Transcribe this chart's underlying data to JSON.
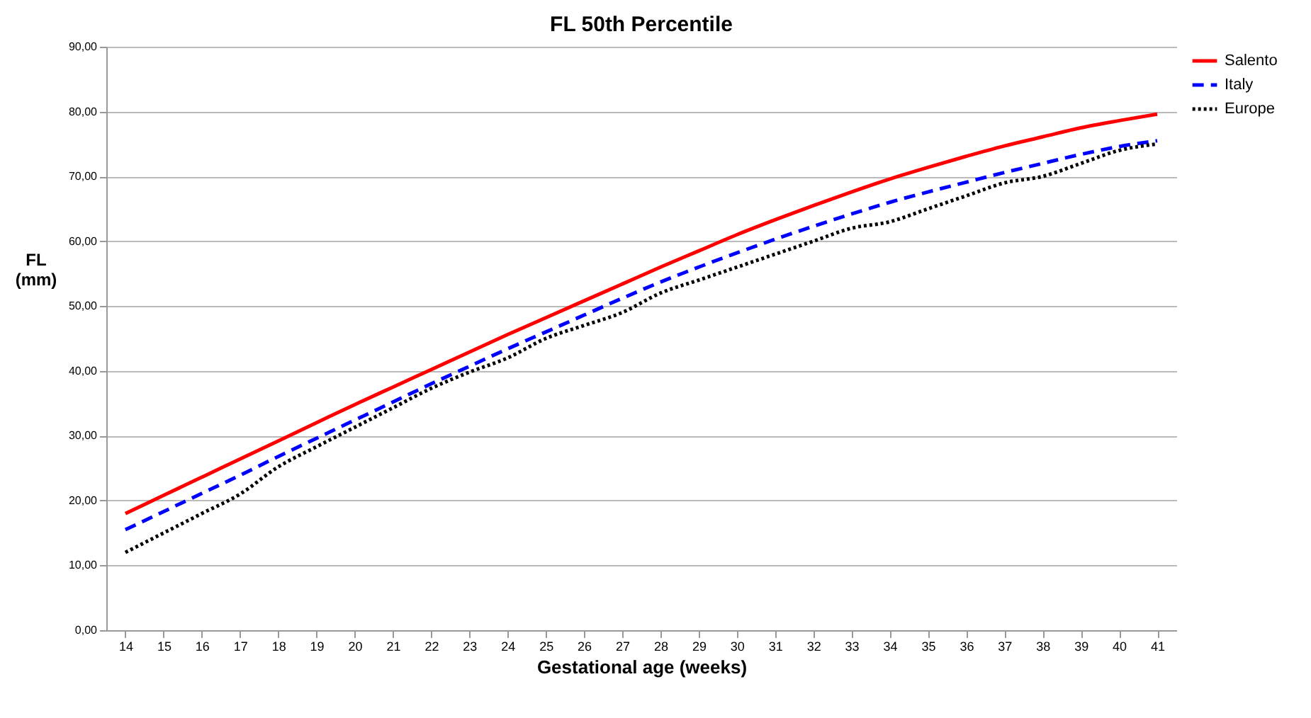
{
  "chart_data": {
    "type": "line",
    "title": "FL 50th Percentile",
    "xlabel": "Gestational age (weeks)",
    "ylabel": "FL\n(mm)",
    "categories": [
      "14",
      "15",
      "16",
      "17",
      "18",
      "19",
      "20",
      "21",
      "22",
      "23",
      "24",
      "25",
      "26",
      "27",
      "28",
      "29",
      "30",
      "31",
      "32",
      "33",
      "34",
      "35",
      "36",
      "37",
      "38",
      "39",
      "40",
      "41"
    ],
    "series": [
      {
        "name": "Salento",
        "color": "#ff0000",
        "line_style": "solid",
        "values": [
          18.0,
          20.8,
          23.6,
          26.4,
          29.2,
          32.0,
          34.8,
          37.5,
          40.2,
          42.9,
          45.6,
          48.2,
          50.8,
          53.4,
          56.0,
          58.5,
          61.0,
          63.3,
          65.5,
          67.6,
          69.6,
          71.4,
          73.1,
          74.7,
          76.1,
          77.5,
          78.6,
          79.6
        ]
      },
      {
        "name": "Italy",
        "color": "#0000ff",
        "line_style": "dashed",
        "values": [
          15.5,
          18.3,
          21.1,
          23.9,
          26.8,
          29.6,
          32.4,
          35.2,
          38.0,
          40.7,
          43.4,
          46.0,
          48.6,
          51.2,
          53.7,
          56.0,
          58.2,
          60.3,
          62.3,
          64.2,
          66.0,
          67.6,
          69.1,
          70.6,
          72.0,
          73.4,
          74.6,
          75.5
        ]
      },
      {
        "name": "Europe",
        "color": "#000000",
        "line_style": "dotted",
        "values": [
          12.0,
          15.0,
          18.0,
          21.0,
          25.2,
          28.3,
          31.3,
          34.3,
          37.3,
          39.8,
          42.0,
          45.0,
          47.0,
          49.0,
          52.0,
          54.0,
          56.0,
          58.0,
          60.0,
          62.0,
          63.0,
          65.0,
          67.0,
          69.0,
          70.0,
          72.0,
          74.0,
          75.0
        ]
      }
    ],
    "ylim": [
      0,
      90
    ],
    "yticks": [
      {
        "value": 0,
        "label": "0,00"
      },
      {
        "value": 10,
        "label": "10,00"
      },
      {
        "value": 20,
        "label": "20,00"
      },
      {
        "value": 30,
        "label": "30,00"
      },
      {
        "value": 40,
        "label": "40,00"
      },
      {
        "value": 50,
        "label": "50,00"
      },
      {
        "value": 60,
        "label": "60,00"
      },
      {
        "value": 70,
        "label": "70,00"
      },
      {
        "value": 80,
        "label": "80,00"
      },
      {
        "value": 90,
        "label": "90,00"
      }
    ],
    "grid": "y",
    "legend": "right",
    "marker": "none"
  }
}
